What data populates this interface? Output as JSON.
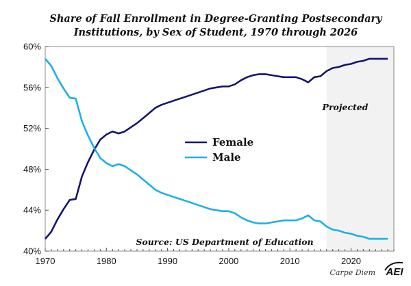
{
  "chart_data": {
    "type": "line",
    "title_lines": [
      "Share of Fall Enrollment in Degree-Granting Postsecondary",
      "Institutions, by Sex of Student, 1970 through 2026"
    ],
    "xlabel": "",
    "ylabel": "",
    "xlim": [
      1970,
      2027
    ],
    "ylim": [
      40,
      60
    ],
    "x_ticks": [
      1970,
      1980,
      1990,
      2000,
      2010,
      2020
    ],
    "y_ticks": [
      40,
      44,
      48,
      52,
      56,
      60
    ],
    "y_tick_labels": [
      "40%",
      "44%",
      "48%",
      "52%",
      "56%",
      "60%"
    ],
    "grid": false,
    "legend_position": "center",
    "projected_range": [
      2016,
      2026
    ],
    "projected_label": "Projected",
    "source_note": "Source: US Department of Education",
    "colors": {
      "female": "#14146e",
      "male": "#1ab0e8",
      "projected_shade": "#f2f2f2"
    },
    "series": [
      {
        "name": "Female",
        "color": "#14146e",
        "x": [
          1970,
          1971,
          1972,
          1973,
          1974,
          1975,
          1976,
          1977,
          1978,
          1979,
          1980,
          1981,
          1982,
          1983,
          1984,
          1985,
          1986,
          1987,
          1988,
          1989,
          1990,
          1991,
          1992,
          1993,
          1994,
          1995,
          1996,
          1997,
          1998,
          1999,
          2000,
          2001,
          2002,
          2003,
          2004,
          2005,
          2006,
          2007,
          2008,
          2009,
          2010,
          2011,
          2012,
          2013,
          2014,
          2015,
          2016,
          2017,
          2018,
          2019,
          2020,
          2021,
          2022,
          2023,
          2024,
          2025,
          2026
        ],
        "values": [
          41.2,
          41.9,
          43.1,
          44.1,
          45.0,
          45.1,
          47.3,
          48.7,
          49.9,
          50.9,
          51.4,
          51.7,
          51.5,
          51.7,
          52.1,
          52.5,
          53.0,
          53.5,
          54.0,
          54.3,
          54.5,
          54.7,
          54.9,
          55.1,
          55.3,
          55.5,
          55.7,
          55.9,
          56.0,
          56.1,
          56.1,
          56.3,
          56.7,
          57.0,
          57.2,
          57.3,
          57.3,
          57.2,
          57.1,
          57.0,
          57.0,
          57.0,
          56.8,
          56.5,
          57.0,
          57.1,
          57.6,
          57.9,
          58.0,
          58.2,
          58.3,
          58.5,
          58.6,
          58.8,
          58.8,
          58.8,
          58.8
        ]
      },
      {
        "name": "Male",
        "color": "#1ab0e8",
        "x": [
          1970,
          1971,
          1972,
          1973,
          1974,
          1975,
          1976,
          1977,
          1978,
          1979,
          1980,
          1981,
          1982,
          1983,
          1984,
          1985,
          1986,
          1987,
          1988,
          1989,
          1990,
          1991,
          1992,
          1993,
          1994,
          1995,
          1996,
          1997,
          1998,
          1999,
          2000,
          2001,
          2002,
          2003,
          2004,
          2005,
          2006,
          2007,
          2008,
          2009,
          2010,
          2011,
          2012,
          2013,
          2014,
          2015,
          2016,
          2017,
          2018,
          2019,
          2020,
          2021,
          2022,
          2023,
          2024,
          2025,
          2026
        ],
        "values": [
          58.8,
          58.1,
          56.9,
          55.9,
          55.0,
          54.9,
          52.7,
          51.3,
          50.1,
          49.1,
          48.6,
          48.3,
          48.5,
          48.3,
          47.9,
          47.5,
          47.0,
          46.5,
          46.0,
          45.7,
          45.5,
          45.3,
          45.1,
          44.9,
          44.7,
          44.5,
          44.3,
          44.1,
          44.0,
          43.9,
          43.9,
          43.7,
          43.3,
          43.0,
          42.8,
          42.7,
          42.7,
          42.8,
          42.9,
          43.0,
          43.0,
          43.0,
          43.2,
          43.5,
          43.0,
          42.9,
          42.4,
          42.1,
          42.0,
          41.8,
          41.7,
          41.5,
          41.4,
          41.2,
          41.2,
          41.2,
          41.2
        ]
      }
    ]
  },
  "footer": {
    "brand": "Carpe Diem",
    "logo": "AEI"
  }
}
